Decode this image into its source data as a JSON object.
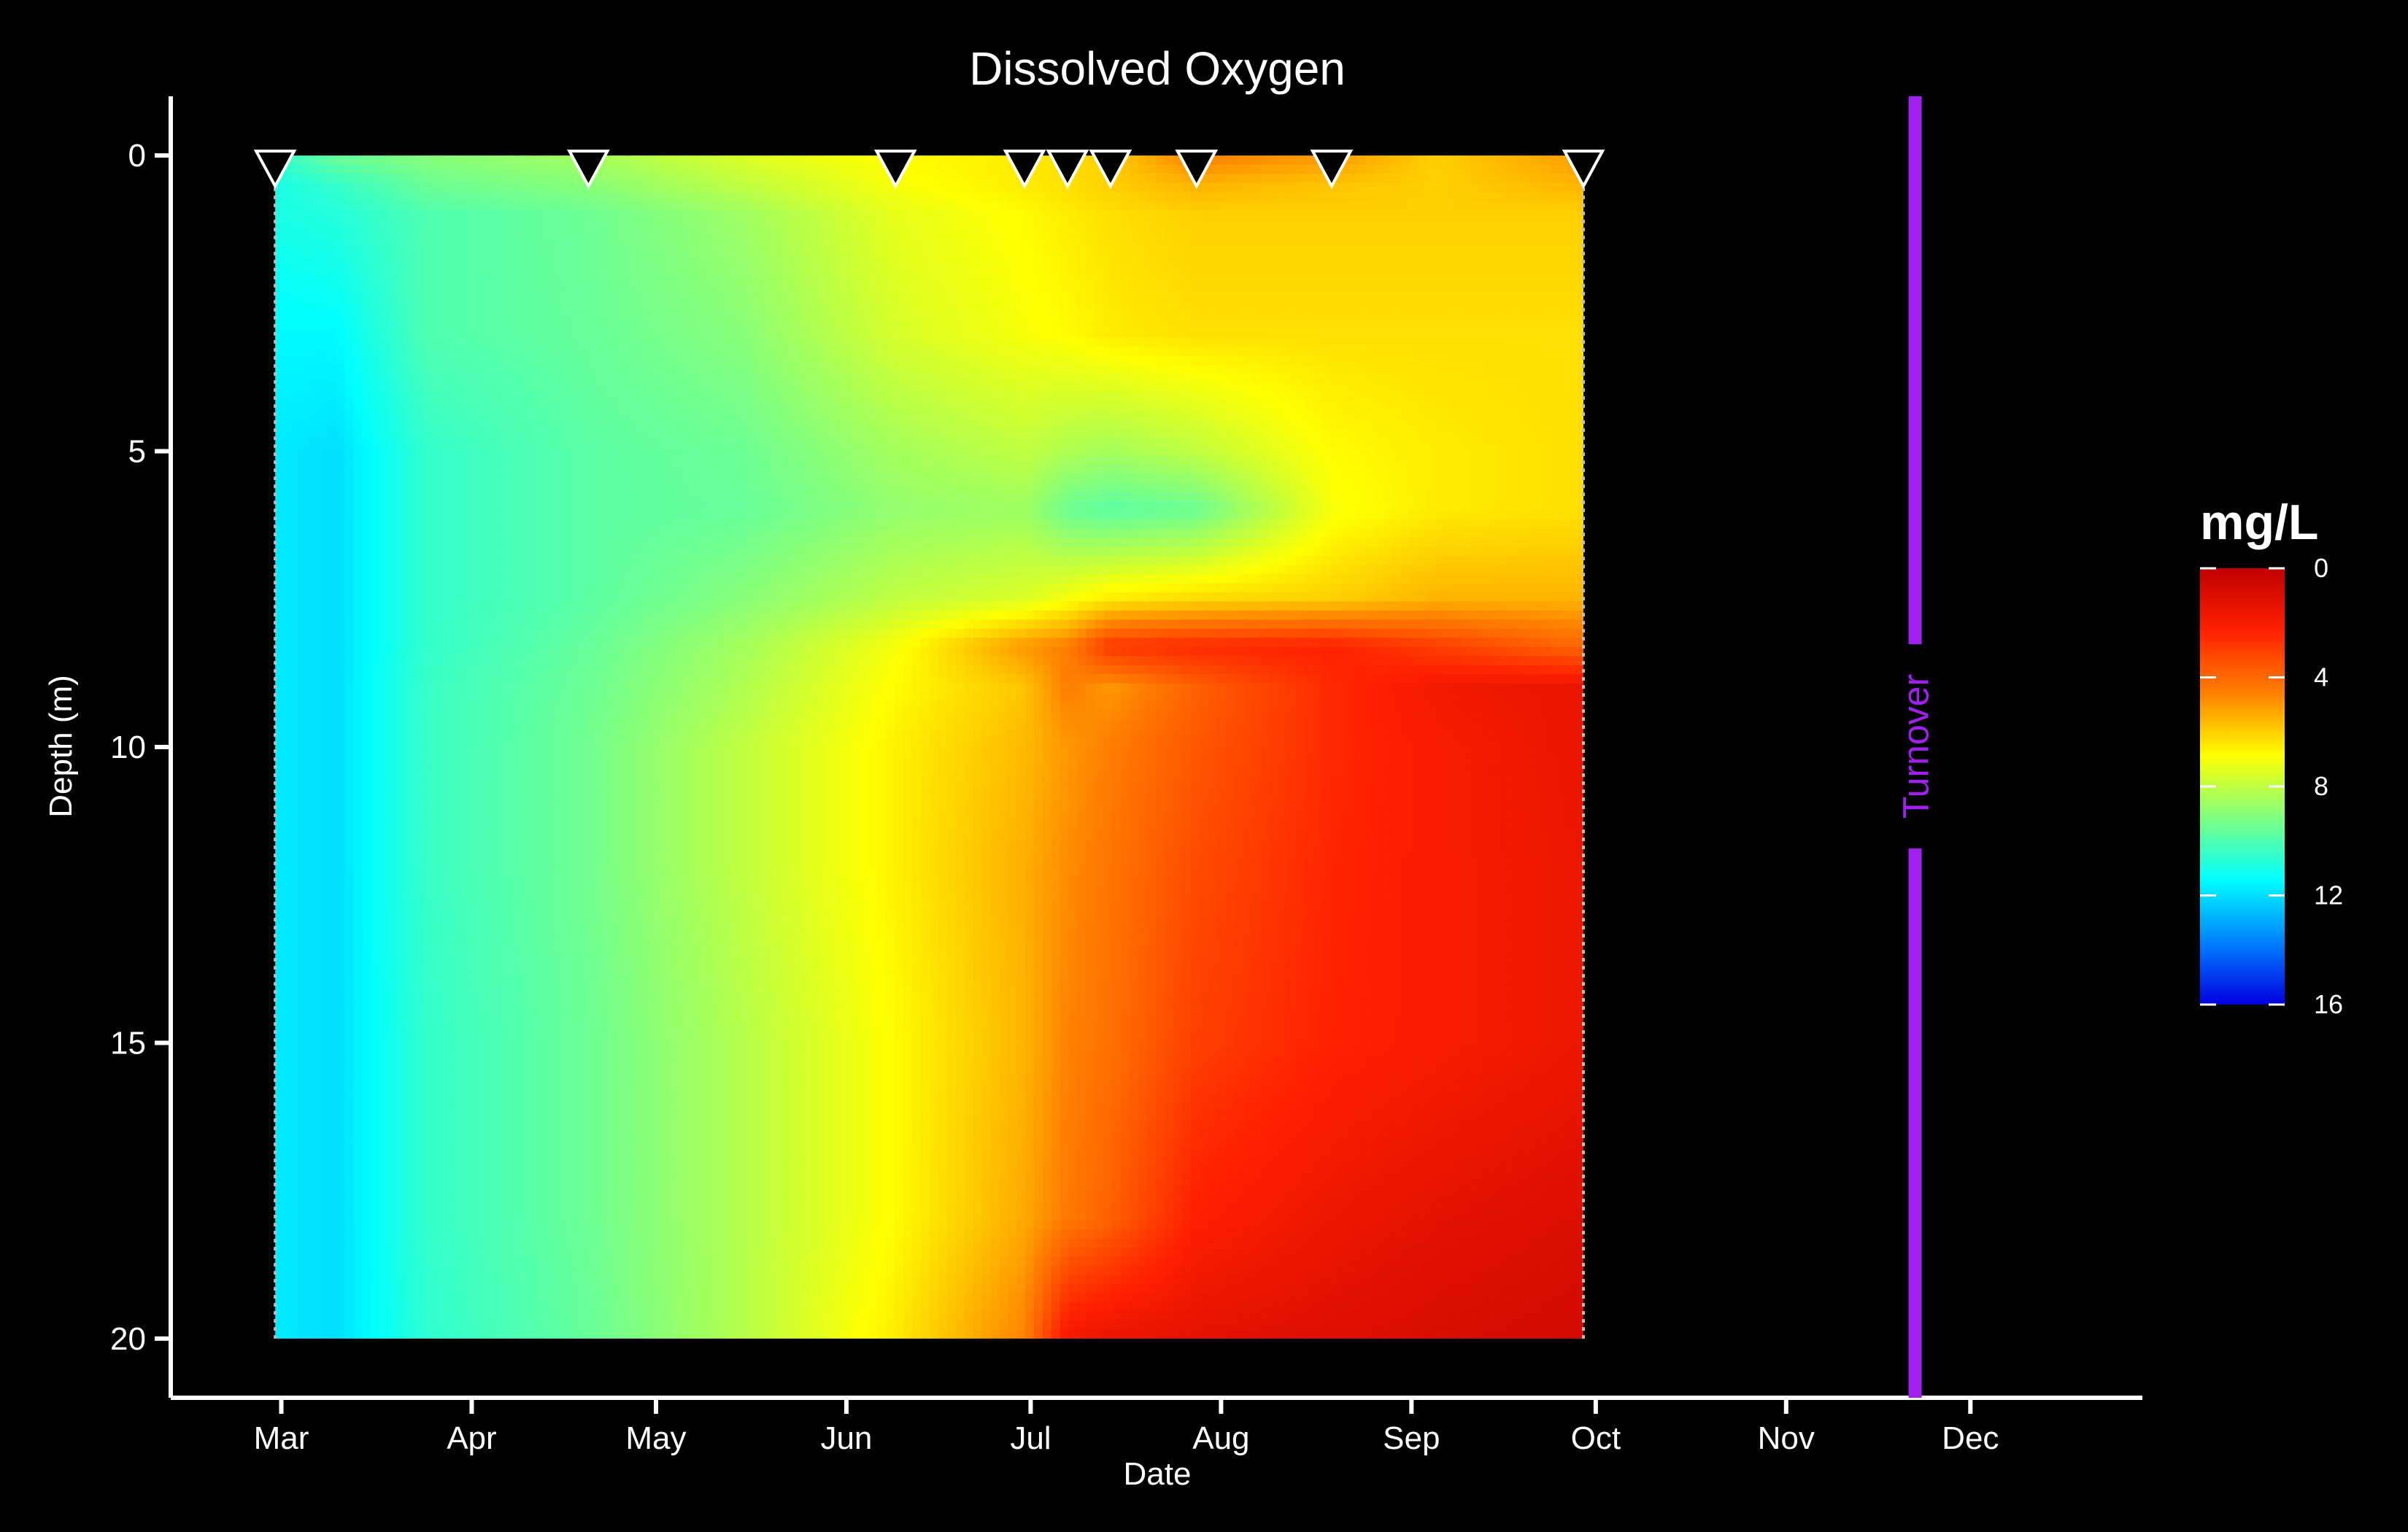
{
  "chart_data": {
    "type": "heatmap",
    "title": "Dissolved Oxygen",
    "xlabel": "Date",
    "ylabel": "Depth (m)",
    "x_ticks": [
      {
        "label": "Mar",
        "date": "03-01"
      },
      {
        "label": "Apr",
        "date": "04-01"
      },
      {
        "label": "May",
        "date": "05-01"
      },
      {
        "label": "Jun",
        "date": "06-01"
      },
      {
        "label": "Jul",
        "date": "07-01"
      },
      {
        "label": "Aug",
        "date": "08-01"
      },
      {
        "label": "Sep",
        "date": "09-01"
      },
      {
        "label": "Oct",
        "date": "10-01"
      },
      {
        "label": "Nov",
        "date": "11-01"
      },
      {
        "label": "Dec",
        "date": "12-01"
      }
    ],
    "xlim": [
      "02-11",
      "12-29"
    ],
    "y_ticks": [
      0,
      5,
      10,
      15,
      20
    ],
    "ylim": [
      21,
      -1
    ],
    "y_reversed": true,
    "legend": {
      "title": "mg/L",
      "ticks": [
        0,
        4,
        8,
        12,
        16
      ],
      "range": [
        0,
        16
      ],
      "colors": [
        "#c00000",
        "#ff2000",
        "#ff8000",
        "#ffff00",
        "#80ff80",
        "#00ffff",
        "#0080ff",
        "#0000e0"
      ],
      "position": "right"
    },
    "sample_dates": [
      "02-28",
      "04-20",
      "06-09",
      "06-30",
      "07-07",
      "07-14",
      "07-28",
      "08-19",
      "09-29"
    ],
    "annotations": [
      {
        "label": "Turnover",
        "date": "11-22",
        "color": "#a020f0"
      }
    ],
    "depths": [
      0,
      0.5,
      1,
      3,
      5,
      6,
      7.5,
      8.3,
      9,
      10,
      12,
      15,
      18,
      20
    ],
    "dates": [
      "02-28",
      "03-10",
      "03-25",
      "04-20",
      "05-15",
      "06-09",
      "06-30",
      "07-07",
      "07-14",
      "07-28",
      "08-19",
      "09-05",
      "09-29"
    ],
    "values": [
      [
        10.5,
        9.5,
        9.0,
        8.5,
        7.5,
        6.8,
        6.5,
        6.3,
        6.0,
        4.5,
        5.0,
        6.0,
        5.0
      ],
      [
        11.0,
        10.5,
        9.5,
        9.0,
        8.0,
        7.0,
        6.5,
        6.3,
        6.0,
        5.5,
        5.8,
        6.0,
        5.5
      ],
      [
        11.0,
        10.8,
        10.0,
        9.5,
        8.6,
        7.3,
        6.8,
        6.5,
        6.3,
        6.0,
        6.0,
        6.0,
        6.0
      ],
      [
        11.5,
        11.5,
        10.0,
        9.6,
        9.0,
        7.6,
        7.0,
        6.8,
        6.5,
        6.3,
        6.3,
        6.3,
        6.3
      ],
      [
        11.8,
        12.0,
        10.5,
        9.8,
        9.5,
        8.5,
        8.0,
        8.3,
        8.5,
        8.0,
        6.8,
        6.5,
        6.3
      ],
      [
        11.8,
        12.0,
        10.5,
        9.8,
        9.6,
        8.8,
        8.6,
        9.5,
        9.8,
        9.5,
        7.0,
        6.5,
        6.3
      ],
      [
        11.8,
        12.0,
        10.5,
        9.8,
        9.0,
        8.0,
        7.5,
        7.0,
        6.5,
        6.2,
        6.0,
        5.5,
        5.5
      ],
      [
        11.8,
        12.0,
        10.5,
        9.6,
        8.5,
        7.0,
        5.0,
        4.5,
        2.8,
        2.5,
        2.3,
        3.0,
        4.0
      ],
      [
        11.8,
        12.0,
        10.4,
        9.5,
        8.3,
        6.8,
        5.8,
        4.5,
        5.0,
        3.8,
        2.5,
        1.8,
        1.5
      ],
      [
        11.8,
        12.0,
        10.4,
        9.4,
        8.0,
        6.6,
        5.6,
        5.0,
        4.5,
        3.6,
        2.5,
        2.0,
        1.5
      ],
      [
        11.8,
        12.0,
        10.4,
        9.4,
        8.0,
        6.6,
        5.4,
        4.8,
        4.3,
        3.3,
        2.4,
        2.0,
        1.6
      ],
      [
        11.8,
        12.0,
        10.5,
        9.5,
        8.2,
        6.8,
        5.5,
        4.6,
        4.2,
        3.0,
        2.3,
        2.0,
        1.6
      ],
      [
        11.8,
        12.0,
        10.5,
        9.5,
        8.2,
        6.8,
        5.3,
        4.4,
        3.8,
        2.2,
        1.6,
        1.3,
        1.0
      ],
      [
        11.8,
        12.0,
        10.6,
        9.6,
        8.2,
        6.5,
        4.6,
        1.8,
        1.5,
        1.3,
        1.1,
        0.9,
        0.7
      ]
    ]
  }
}
